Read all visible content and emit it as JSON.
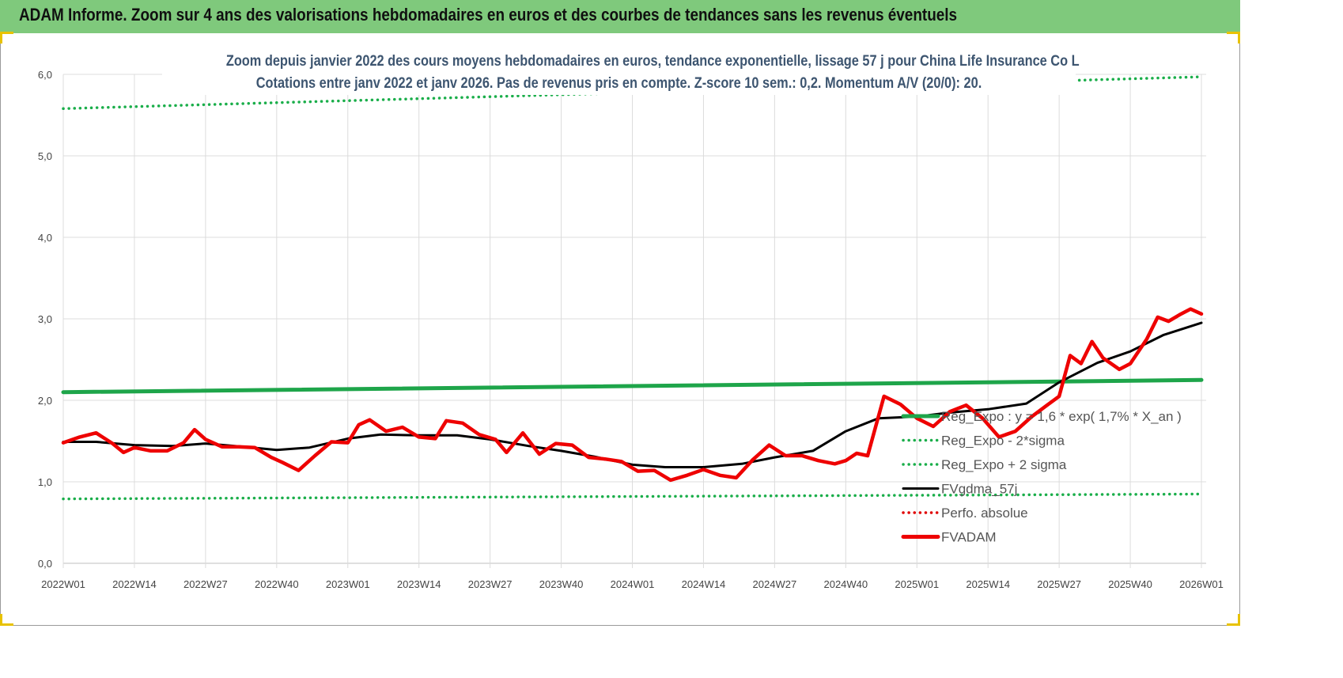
{
  "banner": {
    "title": "ADAM Informe. Zoom sur 4 ans des valorisations hebdomadaires en euros et des courbes de tendances sans les revenus éventuels"
  },
  "colors": {
    "banner_bg": "#7fc97c",
    "reg_expo": "#1ea54a",
    "sigma_dots": "#1aae4a",
    "fvgdma": "#000000",
    "perfo": "#e00000",
    "fvadam": "#ee0000",
    "subtitle": "#3d5570"
  },
  "chart_data": {
    "type": "line",
    "title_lines": [
      "Zoom depuis janvier 2022 des cours moyens hebdomadaires en euros, tendance exponentielle, lissage 57 j pour China Life Insurance Co L",
      "Cotations entre janv 2022 et janv 2026. Pas de revenus pris en compte. Z-score 10 sem.: 0,2. Momentum A/V (20/0): 20."
    ],
    "x_tick_labels": [
      "2022W01",
      "2022W14",
      "2022W27",
      "2022W40",
      "2023W01",
      "2023W14",
      "2023W27",
      "2023W40",
      "2024W01",
      "2024W14",
      "2024W27",
      "2024W40",
      "2025W01",
      "2025W14",
      "2025W27",
      "2025W40",
      "2026W01"
    ],
    "y_tick_labels": [
      "0,0",
      "1,0",
      "2,0",
      "3,0",
      "4,0",
      "5,0",
      "6,0"
    ],
    "ylim": [
      0,
      6
    ],
    "grid": true,
    "legend_position": "right",
    "legend": [
      {
        "name": "Reg_Expo : y = 1,6 * exp( 1,7% *  X_an )",
        "style": "solid-thick",
        "color": "#1ea54a"
      },
      {
        "name": "Reg_Expo - 2*sigma",
        "style": "dotted",
        "color": "#1aae4a"
      },
      {
        "name": "Reg_Expo + 2 sigma",
        "style": "dotted",
        "color": "#1aae4a"
      },
      {
        "name": "FVgdma_57j",
        "style": "solid",
        "color": "#000000"
      },
      {
        "name": "Perfo. absolue",
        "style": "dotted",
        "color": "#e00000"
      },
      {
        "name": "FVADAM",
        "style": "solid-thick",
        "color": "#ee0000"
      }
    ],
    "series": [
      {
        "name": "Reg_Expo : y = 1,6 * exp( 1,7% *  X_an )",
        "x": [
          "2022W01",
          "2026W01"
        ],
        "values": [
          2.1,
          2.25
        ]
      },
      {
        "name": "Reg_Expo - 2*sigma",
        "x": [
          "2022W01",
          "2026W01"
        ],
        "values": [
          0.79,
          0.85
        ]
      },
      {
        "name": "Reg_Expo + 2 sigma",
        "x": [
          "2022W01",
          "2026W01"
        ],
        "values": [
          5.58,
          5.97
        ]
      },
      {
        "name": "FVgdma_57j",
        "x": [
          "2022W01",
          "2022W07",
          "2022W14",
          "2022W21",
          "2022W27",
          "2022W34",
          "2022W40",
          "2022W46",
          "2023W01",
          "2023W07",
          "2023W14",
          "2023W21",
          "2023W27",
          "2023W34",
          "2023W40",
          "2023W46",
          "2024W01",
          "2024W07",
          "2024W14",
          "2024W21",
          "2024W27",
          "2024W34",
          "2024W40",
          "2024W46",
          "2025W01",
          "2025W07",
          "2025W14",
          "2025W21",
          "2025W27",
          "2025W34",
          "2025W40",
          "2025W46",
          "2026W01"
        ],
        "values": [
          1.49,
          1.49,
          1.45,
          1.44,
          1.47,
          1.43,
          1.39,
          1.42,
          1.53,
          1.58,
          1.57,
          1.57,
          1.52,
          1.44,
          1.38,
          1.31,
          1.21,
          1.18,
          1.18,
          1.22,
          1.3,
          1.38,
          1.62,
          1.78,
          1.8,
          1.85,
          1.89,
          1.96,
          2.22,
          2.46,
          2.6,
          2.8,
          2.95
        ]
      },
      {
        "name": "FVADAM",
        "x": [
          "2022W01",
          "2022W04",
          "2022W07",
          "2022W10",
          "2022W12",
          "2022W14",
          "2022W17",
          "2022W20",
          "2022W23",
          "2022W25",
          "2022W27",
          "2022W30",
          "2022W33",
          "2022W36",
          "2022W39",
          "2022W41",
          "2022W44",
          "2022W47",
          "2022W50",
          "2023W01",
          "2023W03",
          "2023W05",
          "2023W08",
          "2023W11",
          "2023W14",
          "2023W17",
          "2023W19",
          "2023W22",
          "2023W25",
          "2023W28",
          "2023W30",
          "2023W33",
          "2023W36",
          "2023W39",
          "2023W42",
          "2023W45",
          "2023W48",
          "2023W51",
          "2024W02",
          "2024W05",
          "2024W08",
          "2024W11",
          "2024W14",
          "2024W17",
          "2024W20",
          "2024W23",
          "2024W26",
          "2024W29",
          "2024W32",
          "2024W35",
          "2024W38",
          "2024W40",
          "2024W42",
          "2024W44",
          "2024W47",
          "2024W50",
          "2025W01",
          "2025W04",
          "2025W07",
          "2025W10",
          "2025W13",
          "2025W16",
          "2025W19",
          "2025W22",
          "2025W25",
          "2025W27",
          "2025W29",
          "2025W31",
          "2025W33",
          "2025W35",
          "2025W38",
          "2025W40",
          "2025W43",
          "2025W45",
          "2025W47",
          "2025W49",
          "2025W51",
          "2026W01"
        ],
        "values": [
          1.48,
          1.55,
          1.6,
          1.47,
          1.36,
          1.42,
          1.38,
          1.38,
          1.48,
          1.64,
          1.52,
          1.43,
          1.43,
          1.42,
          1.3,
          1.24,
          1.14,
          1.32,
          1.49,
          1.48,
          1.7,
          1.76,
          1.62,
          1.67,
          1.55,
          1.53,
          1.75,
          1.72,
          1.58,
          1.52,
          1.36,
          1.6,
          1.34,
          1.47,
          1.45,
          1.3,
          1.28,
          1.25,
          1.13,
          1.14,
          1.02,
          1.08,
          1.15,
          1.08,
          1.05,
          1.27,
          1.45,
          1.32,
          1.32,
          1.26,
          1.22,
          1.26,
          1.35,
          1.32,
          2.05,
          1.95,
          1.78,
          1.68,
          1.86,
          1.94,
          1.78,
          1.55,
          1.62,
          1.8,
          1.95,
          2.05,
          2.55,
          2.45,
          2.72,
          2.52,
          2.38,
          2.45,
          2.75,
          3.02,
          2.97,
          3.05,
          3.12,
          3.06
        ]
      }
    ]
  }
}
